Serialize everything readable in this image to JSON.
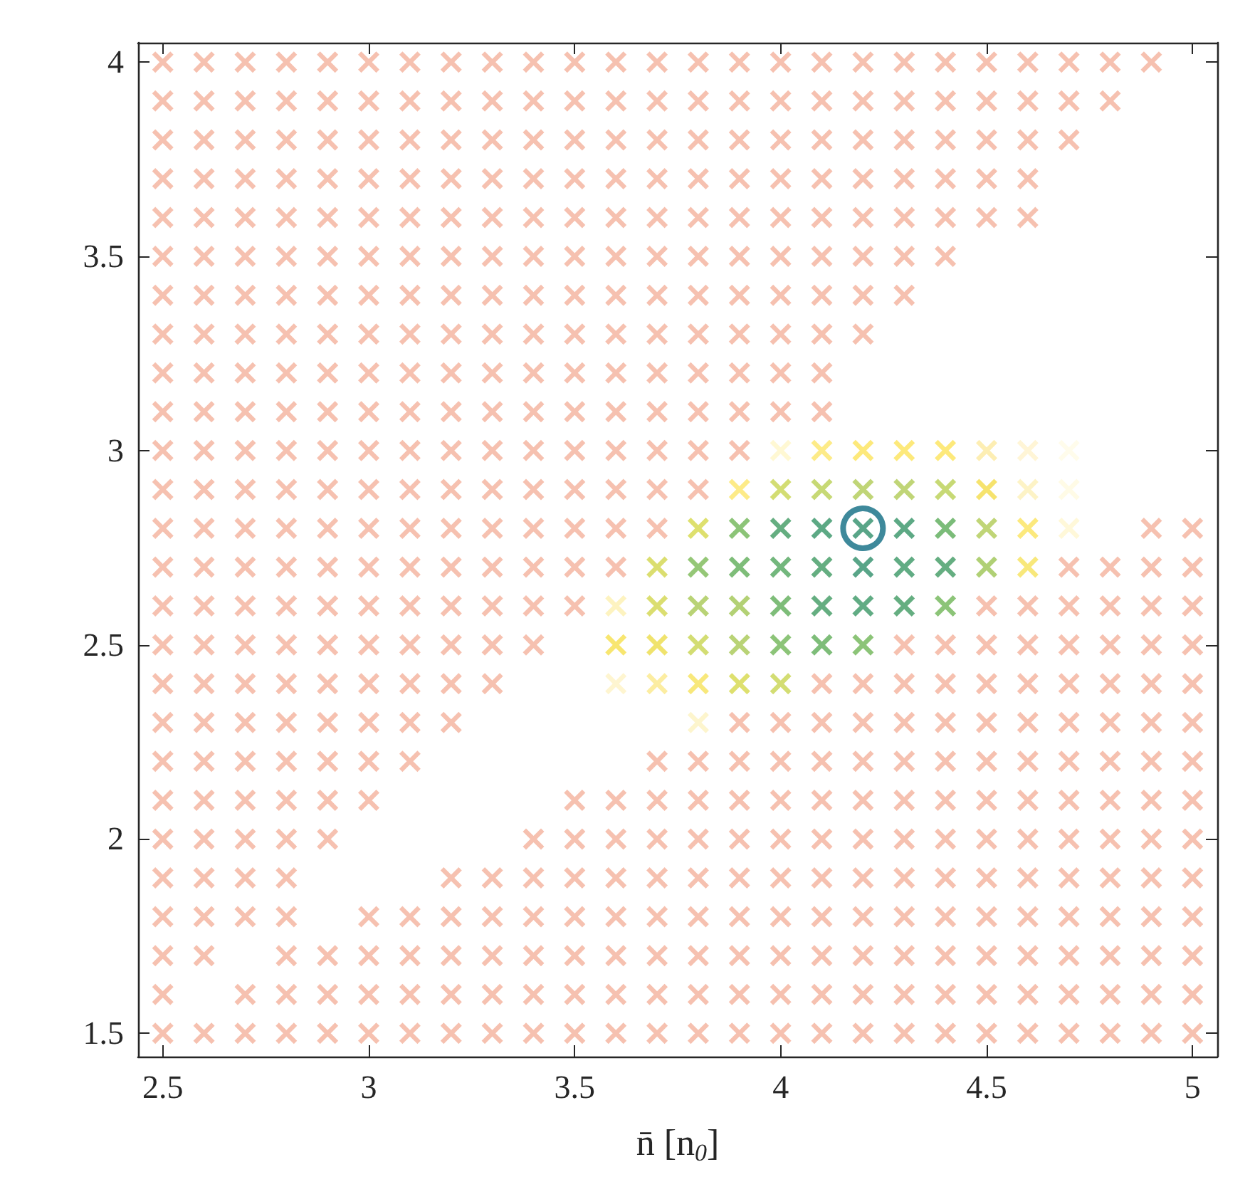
{
  "chart_data": {
    "type": "scatter",
    "xlabel": "n̄ [n$_{0}$]",
    "xlim": [
      2.44,
      5.06
    ],
    "ylim": [
      1.44,
      4.05
    ],
    "xticks": [
      2.5,
      3,
      3.5,
      4,
      4.5,
      5
    ],
    "yticks": [
      1.5,
      2,
      2.5,
      3,
      3.5,
      4
    ],
    "grid": false,
    "marker": "cross",
    "series": [
      {
        "color": "#f4b29c",
        "x": [
          2.5,
          2.6,
          2.7,
          2.8,
          2.9,
          3.0,
          3.1,
          3.2,
          3.3,
          3.4,
          3.5,
          3.6,
          3.7,
          3.8,
          3.9,
          4.0,
          4.1,
          4.2,
          4.3,
          4.4,
          4.5,
          4.6,
          4.7,
          4.8,
          4.9
        ],
        "values": [
          4,
          4,
          4,
          4,
          4,
          4,
          4,
          4,
          4,
          4,
          4,
          4,
          4,
          4,
          4,
          4,
          4,
          4,
          4,
          4,
          4,
          4,
          4,
          4,
          4
        ]
      },
      {
        "color": "#f4b29c",
        "x": [
          2.5,
          2.6,
          2.7,
          2.8,
          2.9,
          3.0,
          3.1,
          3.2,
          3.3,
          3.4,
          3.5,
          3.6,
          3.7,
          3.8,
          3.9,
          4.0,
          4.1,
          4.2,
          4.3,
          4.4,
          4.5,
          4.6,
          4.7,
          4.8
        ],
        "values": [
          3.9,
          3.9,
          3.9,
          3.9,
          3.9,
          3.9,
          3.9,
          3.9,
          3.9,
          3.9,
          3.9,
          3.9,
          3.9,
          3.9,
          3.9,
          3.9,
          3.9,
          3.9,
          3.9,
          3.9,
          3.9,
          3.9,
          3.9,
          3.9
        ]
      },
      {
        "color": "#f4b29c",
        "x": [
          2.5,
          2.6,
          2.7,
          2.8,
          2.9,
          3.0,
          3.1,
          3.2,
          3.3,
          3.4,
          3.5,
          3.6,
          3.7,
          3.8,
          3.9,
          4.0,
          4.1,
          4.2,
          4.3,
          4.4,
          4.5,
          4.6,
          4.7
        ],
        "values": [
          3.8,
          3.8,
          3.8,
          3.8,
          3.8,
          3.8,
          3.8,
          3.8,
          3.8,
          3.8,
          3.8,
          3.8,
          3.8,
          3.8,
          3.8,
          3.8,
          3.8,
          3.8,
          3.8,
          3.8,
          3.8,
          3.8,
          3.8
        ]
      },
      {
        "color": "#f4b29c",
        "x": [
          2.5,
          2.6,
          2.7,
          2.8,
          2.9,
          3.0,
          3.1,
          3.2,
          3.3,
          3.4,
          3.5,
          3.6,
          3.7,
          3.8,
          3.9,
          4.0,
          4.1,
          4.2,
          4.3,
          4.4,
          4.5,
          4.6
        ],
        "values": [
          3.7,
          3.7,
          3.7,
          3.7,
          3.7,
          3.7,
          3.7,
          3.7,
          3.7,
          3.7,
          3.7,
          3.7,
          3.7,
          3.7,
          3.7,
          3.7,
          3.7,
          3.7,
          3.7,
          3.7,
          3.7,
          3.7
        ]
      },
      {
        "color": "#f4b29c",
        "x": [
          2.5,
          2.6,
          2.7,
          2.8,
          2.9,
          3.0,
          3.1,
          3.2,
          3.3,
          3.4,
          3.5,
          3.6,
          3.7,
          3.8,
          3.9,
          4.0,
          4.1,
          4.2,
          4.3,
          4.4,
          4.5,
          4.6
        ],
        "values": [
          3.6,
          3.6,
          3.6,
          3.6,
          3.6,
          3.6,
          3.6,
          3.6,
          3.6,
          3.6,
          3.6,
          3.6,
          3.6,
          3.6,
          3.6,
          3.6,
          3.6,
          3.6,
          3.6,
          3.6,
          3.6,
          3.6
        ]
      },
      {
        "color": "#f4b29c",
        "x": [
          2.5,
          2.6,
          2.7,
          2.8,
          2.9,
          3.0,
          3.1,
          3.2,
          3.3,
          3.4,
          3.5,
          3.6,
          3.7,
          3.8,
          3.9,
          4.0,
          4.1,
          4.2,
          4.3,
          4.4
        ],
        "values": [
          3.5,
          3.5,
          3.5,
          3.5,
          3.5,
          3.5,
          3.5,
          3.5,
          3.5,
          3.5,
          3.5,
          3.5,
          3.5,
          3.5,
          3.5,
          3.5,
          3.5,
          3.5,
          3.5,
          3.5
        ]
      },
      {
        "color": "#f4b29c",
        "x": [
          2.5,
          2.6,
          2.7,
          2.8,
          2.9,
          3.0,
          3.1,
          3.2,
          3.3,
          3.4,
          3.5,
          3.6,
          3.7,
          3.8,
          3.9,
          4.0,
          4.1,
          4.2,
          4.3
        ],
        "values": [
          3.4,
          3.4,
          3.4,
          3.4,
          3.4,
          3.4,
          3.4,
          3.4,
          3.4,
          3.4,
          3.4,
          3.4,
          3.4,
          3.4,
          3.4,
          3.4,
          3.4,
          3.4,
          3.4
        ]
      },
      {
        "color": "#f4b29c",
        "x": [
          2.5,
          2.6,
          2.7,
          2.8,
          2.9,
          3.0,
          3.1,
          3.2,
          3.3,
          3.4,
          3.5,
          3.6,
          3.7,
          3.8,
          3.9,
          4.0,
          4.1,
          4.2
        ],
        "values": [
          3.3,
          3.3,
          3.3,
          3.3,
          3.3,
          3.3,
          3.3,
          3.3,
          3.3,
          3.3,
          3.3,
          3.3,
          3.3,
          3.3,
          3.3,
          3.3,
          3.3,
          3.3
        ]
      },
      {
        "color": "#f4b29c",
        "x": [
          2.5,
          2.6,
          2.7,
          2.8,
          2.9,
          3.0,
          3.1,
          3.2,
          3.3,
          3.4,
          3.5,
          3.6,
          3.7,
          3.8,
          3.9,
          4.0,
          4.1
        ],
        "values": [
          3.2,
          3.2,
          3.2,
          3.2,
          3.2,
          3.2,
          3.2,
          3.2,
          3.2,
          3.2,
          3.2,
          3.2,
          3.2,
          3.2,
          3.2,
          3.2,
          3.2
        ]
      },
      {
        "color": "#f4b29c",
        "x": [
          2.5,
          2.6,
          2.7,
          2.8,
          2.9,
          3.0,
          3.1,
          3.2,
          3.3,
          3.4,
          3.5,
          3.6,
          3.7,
          3.8,
          3.9,
          4.0,
          4.1
        ],
        "values": [
          3.1,
          3.1,
          3.1,
          3.1,
          3.1,
          3.1,
          3.1,
          3.1,
          3.1,
          3.1,
          3.1,
          3.1,
          3.1,
          3.1,
          3.1,
          3.1,
          3.1
        ]
      },
      {
        "color": "#f4b29c",
        "x": [
          2.5,
          2.6,
          2.7,
          2.8,
          2.9,
          3.0,
          3.1,
          3.2,
          3.3,
          3.4,
          3.5,
          3.6,
          3.7,
          3.8,
          3.9
        ],
        "values": [
          3,
          3,
          3,
          3,
          3,
          3,
          3,
          3,
          3,
          3,
          3,
          3,
          3,
          3,
          3
        ]
      },
      {
        "color": "#f4b29c",
        "x": [
          2.5,
          2.6,
          2.7,
          2.8,
          2.9,
          3.0,
          3.1,
          3.2,
          3.3,
          3.4,
          3.5,
          3.6,
          3.7,
          3.8
        ],
        "values": [
          2.9,
          2.9,
          2.9,
          2.9,
          2.9,
          2.9,
          2.9,
          2.9,
          2.9,
          2.9,
          2.9,
          2.9,
          2.9,
          2.9
        ]
      },
      {
        "color": "#f4b29c",
        "x": [
          2.5,
          2.6,
          2.7,
          2.8,
          2.9,
          3.0,
          3.1,
          3.2,
          3.3,
          3.4,
          3.5,
          3.6,
          3.7,
          4.9,
          5.0
        ],
        "values": [
          2.8,
          2.8,
          2.8,
          2.8,
          2.8,
          2.8,
          2.8,
          2.8,
          2.8,
          2.8,
          2.8,
          2.8,
          2.8,
          2.8,
          2.8
        ]
      },
      {
        "color": "#f4b29c",
        "x": [
          2.5,
          2.6,
          2.7,
          2.8,
          2.9,
          3.0,
          3.1,
          3.2,
          3.3,
          3.4,
          3.5,
          3.6,
          4.7,
          4.8,
          4.9,
          5.0
        ],
        "values": [
          2.7,
          2.7,
          2.7,
          2.7,
          2.7,
          2.7,
          2.7,
          2.7,
          2.7,
          2.7,
          2.7,
          2.7,
          2.7,
          2.7,
          2.7,
          2.7
        ]
      },
      {
        "color": "#f4b29c",
        "x": [
          2.5,
          2.6,
          2.7,
          2.8,
          2.9,
          3.0,
          3.1,
          3.2,
          3.3,
          3.4,
          3.5,
          4.5,
          4.6,
          4.7,
          4.8,
          4.9,
          5.0
        ],
        "values": [
          2.6,
          2.6,
          2.6,
          2.6,
          2.6,
          2.6,
          2.6,
          2.6,
          2.6,
          2.6,
          2.6,
          2.6,
          2.6,
          2.6,
          2.6,
          2.6,
          2.6
        ]
      },
      {
        "color": "#f4b29c",
        "x": [
          2.5,
          2.6,
          2.7,
          2.8,
          2.9,
          3.0,
          3.1,
          3.2,
          3.3,
          3.4,
          4.3,
          4.4,
          4.5,
          4.6,
          4.7,
          4.8,
          4.9,
          5.0
        ],
        "values": [
          2.5,
          2.5,
          2.5,
          2.5,
          2.5,
          2.5,
          2.5,
          2.5,
          2.5,
          2.5,
          2.5,
          2.5,
          2.5,
          2.5,
          2.5,
          2.5,
          2.5,
          2.5
        ]
      },
      {
        "color": "#f4b29c",
        "x": [
          2.5,
          2.6,
          2.7,
          2.8,
          2.9,
          3.0,
          3.1,
          3.2,
          3.3,
          4.1,
          4.2,
          4.3,
          4.4,
          4.5,
          4.6,
          4.7,
          4.8,
          4.9,
          5.0
        ],
        "values": [
          2.4,
          2.4,
          2.4,
          2.4,
          2.4,
          2.4,
          2.4,
          2.4,
          2.4,
          2.4,
          2.4,
          2.4,
          2.4,
          2.4,
          2.4,
          2.4,
          2.4,
          2.4,
          2.4
        ]
      },
      {
        "color": "#f4b29c",
        "x": [
          2.5,
          2.6,
          2.7,
          2.8,
          2.9,
          3.0,
          3.1,
          3.2,
          3.9,
          4.0,
          4.1,
          4.2,
          4.3,
          4.4,
          4.5,
          4.6,
          4.7,
          4.8,
          4.9,
          5.0
        ],
        "values": [
          2.3,
          2.3,
          2.3,
          2.3,
          2.3,
          2.3,
          2.3,
          2.3,
          2.3,
          2.3,
          2.3,
          2.3,
          2.3,
          2.3,
          2.3,
          2.3,
          2.3,
          2.3,
          2.3,
          2.3
        ]
      },
      {
        "color": "#f4b29c",
        "x": [
          2.5,
          2.6,
          2.7,
          2.8,
          2.9,
          3.0,
          3.1,
          3.7,
          3.8,
          3.9,
          4.0,
          4.1,
          4.2,
          4.3,
          4.4,
          4.5,
          4.6,
          4.7,
          4.8,
          4.9,
          5.0
        ],
        "values": [
          2.2,
          2.2,
          2.2,
          2.2,
          2.2,
          2.2,
          2.2,
          2.2,
          2.2,
          2.2,
          2.2,
          2.2,
          2.2,
          2.2,
          2.2,
          2.2,
          2.2,
          2.2,
          2.2,
          2.2,
          2.2
        ]
      },
      {
        "color": "#f4b29c",
        "x": [
          2.5,
          2.6,
          2.7,
          2.8,
          2.9,
          3.0,
          3.5,
          3.6,
          3.7,
          3.8,
          3.9,
          4.0,
          4.1,
          4.2,
          4.3,
          4.4,
          4.5,
          4.6,
          4.7,
          4.8,
          4.9,
          5.0
        ],
        "values": [
          2.1,
          2.1,
          2.1,
          2.1,
          2.1,
          2.1,
          2.1,
          2.1,
          2.1,
          2.1,
          2.1,
          2.1,
          2.1,
          2.1,
          2.1,
          2.1,
          2.1,
          2.1,
          2.1,
          2.1,
          2.1,
          2.1
        ]
      },
      {
        "color": "#f4b29c",
        "x": [
          2.5,
          2.6,
          2.7,
          2.8,
          2.9,
          3.4,
          3.5,
          3.6,
          3.7,
          3.8,
          3.9,
          4.0,
          4.1,
          4.2,
          4.3,
          4.4,
          4.5,
          4.6,
          4.7,
          4.8,
          4.9,
          5.0
        ],
        "values": [
          2,
          2,
          2,
          2,
          2,
          2,
          2,
          2,
          2,
          2,
          2,
          2,
          2,
          2,
          2,
          2,
          2,
          2,
          2,
          2,
          2,
          2
        ]
      },
      {
        "color": "#f4b29c",
        "x": [
          2.5,
          2.6,
          2.7,
          2.8,
          3.2,
          3.3,
          3.4,
          3.5,
          3.6,
          3.7,
          3.8,
          3.9,
          4.0,
          4.1,
          4.2,
          4.3,
          4.4,
          4.5,
          4.6,
          4.7,
          4.8,
          4.9,
          5.0
        ],
        "values": [
          1.9,
          1.9,
          1.9,
          1.9,
          1.9,
          1.9,
          1.9,
          1.9,
          1.9,
          1.9,
          1.9,
          1.9,
          1.9,
          1.9,
          1.9,
          1.9,
          1.9,
          1.9,
          1.9,
          1.9,
          1.9,
          1.9,
          1.9
        ]
      },
      {
        "color": "#f4b29c",
        "x": [
          2.5,
          2.6,
          2.7,
          2.8,
          3.0,
          3.1,
          3.2,
          3.3,
          3.4,
          3.5,
          3.6,
          3.7,
          3.8,
          3.9,
          4.0,
          4.1,
          4.2,
          4.3,
          4.4,
          4.5,
          4.6,
          4.7,
          4.8,
          4.9,
          5.0
        ],
        "values": [
          1.8,
          1.8,
          1.8,
          1.8,
          1.8,
          1.8,
          1.8,
          1.8,
          1.8,
          1.8,
          1.8,
          1.8,
          1.8,
          1.8,
          1.8,
          1.8,
          1.8,
          1.8,
          1.8,
          1.8,
          1.8,
          1.8,
          1.8,
          1.8,
          1.8
        ]
      },
      {
        "color": "#f4b29c",
        "x": [
          2.5,
          2.6,
          2.8,
          2.9,
          3.0,
          3.1,
          3.2,
          3.3,
          3.4,
          3.5,
          3.6,
          3.7,
          3.8,
          3.9,
          4.0,
          4.1,
          4.2,
          4.3,
          4.4,
          4.5,
          4.6,
          4.7,
          4.8,
          4.9,
          5.0
        ],
        "values": [
          1.7,
          1.7,
          1.7,
          1.7,
          1.7,
          1.7,
          1.7,
          1.7,
          1.7,
          1.7,
          1.7,
          1.7,
          1.7,
          1.7,
          1.7,
          1.7,
          1.7,
          1.7,
          1.7,
          1.7,
          1.7,
          1.7,
          1.7,
          1.7,
          1.7
        ]
      },
      {
        "color": "#f4b29c",
        "x": [
          2.5,
          2.7,
          2.8,
          2.9,
          3.0,
          3.1,
          3.2,
          3.3,
          3.4,
          3.5,
          3.6,
          3.7,
          3.8,
          3.9,
          4.0,
          4.1,
          4.2,
          4.3,
          4.4,
          4.5,
          4.6,
          4.7,
          4.8,
          4.9,
          5.0
        ],
        "values": [
          1.6,
          1.6,
          1.6,
          1.6,
          1.6,
          1.6,
          1.6,
          1.6,
          1.6,
          1.6,
          1.6,
          1.6,
          1.6,
          1.6,
          1.6,
          1.6,
          1.6,
          1.6,
          1.6,
          1.6,
          1.6,
          1.6,
          1.6,
          1.6,
          1.6
        ]
      },
      {
        "color": "#f4b29c",
        "x": [
          2.5,
          2.6,
          2.7,
          2.8,
          2.9,
          3.0,
          3.1,
          3.2,
          3.3,
          3.4,
          3.5,
          3.6,
          3.7,
          3.8,
          3.9,
          4.0,
          4.1,
          4.2,
          4.3,
          4.4,
          4.5,
          4.6,
          4.7,
          4.8,
          4.9,
          5.0
        ],
        "values": [
          1.5,
          1.5,
          1.5,
          1.5,
          1.5,
          1.5,
          1.5,
          1.5,
          1.5,
          1.5,
          1.5,
          1.5,
          1.5,
          1.5,
          1.5,
          1.5,
          1.5,
          1.5,
          1.5,
          1.5,
          1.5,
          1.5,
          1.5,
          1.5,
          1.5,
          1.5
        ]
      },
      {
        "x": [
          4.0,
          4.1,
          4.2,
          4.3,
          4.4,
          4.5,
          4.6,
          4.7,
          3.9,
          4.0,
          4.1,
          4.2,
          4.3,
          4.4,
          4.5,
          4.6,
          4.7,
          3.8,
          3.9,
          4.0,
          4.1,
          4.2,
          4.3,
          4.4,
          4.5,
          4.6,
          4.7,
          3.7,
          3.8,
          3.9,
          4.0,
          4.1,
          4.2,
          4.3,
          4.4,
          4.5,
          4.6,
          3.6,
          3.7,
          3.8,
          3.9,
          4.0,
          4.1,
          4.2,
          4.3,
          4.4,
          3.6,
          3.7,
          3.8,
          3.9,
          4.0,
          4.1,
          4.2,
          3.6,
          3.7,
          3.8,
          3.9,
          4.0,
          3.8
        ],
        "values": [
          3,
          3,
          3,
          3,
          3,
          3,
          3,
          3,
          2.9,
          2.9,
          2.9,
          2.9,
          2.9,
          2.9,
          2.9,
          2.9,
          2.9,
          2.8,
          2.8,
          2.8,
          2.8,
          2.8,
          2.8,
          2.8,
          2.8,
          2.8,
          2.8,
          2.7,
          2.7,
          2.7,
          2.7,
          2.7,
          2.7,
          2.7,
          2.7,
          2.7,
          2.7,
          2.6,
          2.6,
          2.6,
          2.6,
          2.6,
          2.6,
          2.6,
          2.6,
          2.6,
          2.5,
          2.5,
          2.5,
          2.5,
          2.5,
          2.5,
          2.5,
          2.4,
          2.4,
          2.4,
          2.4,
          2.4,
          2.3
        ],
        "colors": [
          "#fff6c8",
          "#fde66a",
          "#fde35a",
          "#fde35a",
          "#fde35a",
          "#fdeaa0",
          "#fff3cc",
          "#fffbe6",
          "#fde66a",
          "#c8d450",
          "#b9cf52",
          "#b0cb55",
          "#b0cb55",
          "#b9cf52",
          "#f4dc4a",
          "#fdf0b8",
          "#fffae0",
          "#d6d84a",
          "#6fb556",
          "#3f9a62",
          "#359466",
          "#2f8f6a",
          "#359466",
          "#5aab58",
          "#b0cb55",
          "#fbe35c",
          "#fff6d0",
          "#d2d64c",
          "#7ab955",
          "#5eac58",
          "#50a55c",
          "#3f9a62",
          "#2f8f6a",
          "#3a9765",
          "#3f9a62",
          "#9cc452",
          "#f6e25a",
          "#fdf0b0",
          "#d2d64c",
          "#a8c854",
          "#a0c553",
          "#5eac58",
          "#3f9a62",
          "#3a9765",
          "#3f9a62",
          "#6fb556",
          "#f6e04c",
          "#ecdc48",
          "#c8d450",
          "#a8c854",
          "#6fb556",
          "#5eac58",
          "#6fb556",
          "#fef3c4",
          "#fbe98a",
          "#f6e25a",
          "#d6d84a",
          "#c8d450",
          "#fdf2c0"
        ]
      },
      {
        "color": "#0e6b82",
        "marker": "circle",
        "x": [
          4.2
        ],
        "values": [
          2.8
        ]
      }
    ]
  }
}
